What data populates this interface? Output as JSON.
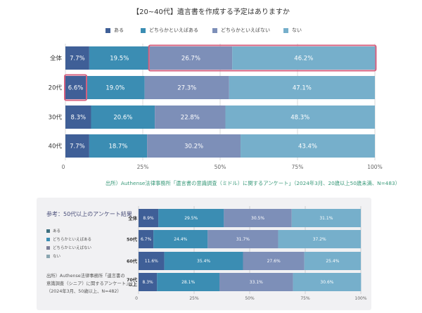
{
  "title": "【20~40代】遺言書を作成する予定はありますか",
  "legend": [
    {
      "label": "ある",
      "color": "#3f5f97"
    },
    {
      "label": "どちらかといえばある",
      "color": "#3b8db3"
    },
    {
      "label": "どちらかといえばない",
      "color": "#7d8fb8"
    },
    {
      "label": "ない",
      "color": "#76afcb"
    }
  ],
  "source_top": "出所）Authense法律事務所「遺言書の意識調査（ミドル）に関するアンケート」（2024年3月、20歳以上50歳未満、N=483）",
  "reference": {
    "title": "参考：50代以上のアンケート結果",
    "legend": [
      {
        "label": "ある",
        "color": "#3f5f97"
      },
      {
        "label": "どちらかといえばある",
        "color": "#3b8db3"
      },
      {
        "label": "どちらかといえばない",
        "color": "#7d8fb8"
      },
      {
        "label": "ない",
        "color": "#76afcb"
      }
    ],
    "source_lines": [
      "出所）Authense法律事務所「遺言書の",
      "意識調査（シニア）に関するアンケート」",
      "（2024年3月、50歳以上、N=482）"
    ]
  },
  "chart_data": [
    {
      "type": "bar",
      "orientation": "horizontal-stacked-100",
      "title": "【20~40代】遺言書を作成する予定はありますか",
      "categories": [
        "全体",
        "20代",
        "30代",
        "40代"
      ],
      "series": [
        {
          "name": "ある",
          "values": [
            7.7,
            6.6,
            8.3,
            7.7
          ]
        },
        {
          "name": "どちらかといえばある",
          "values": [
            19.5,
            19.0,
            20.6,
            18.7
          ]
        },
        {
          "name": "どちらかといえばない",
          "values": [
            26.7,
            27.3,
            22.8,
            30.2
          ]
        },
        {
          "name": "ない",
          "values": [
            46.2,
            47.1,
            48.3,
            43.4
          ]
        }
      ],
      "xlim": [
        0,
        100
      ],
      "x_ticks": [
        "0",
        "25%",
        "50%",
        "75%",
        "100%"
      ],
      "legend_position": "top",
      "grid": true,
      "highlights": [
        {
          "category": "全体",
          "series": [
            "どちらかといえばない",
            "ない"
          ]
        },
        {
          "category": "20代",
          "series": [
            "ある"
          ]
        }
      ]
    },
    {
      "type": "bar",
      "orientation": "horizontal-stacked-100",
      "title": "参考：50代以上のアンケート結果",
      "categories": [
        "全体",
        "50代",
        "60代",
        "70代以上"
      ],
      "series": [
        {
          "name": "ある",
          "values": [
            8.9,
            6.7,
            11.6,
            8.3
          ]
        },
        {
          "name": "どちらかといえばある",
          "values": [
            29.5,
            24.4,
            35.4,
            28.1
          ]
        },
        {
          "name": "どちらかといえばない",
          "values": [
            30.5,
            31.7,
            27.6,
            33.1
          ]
        },
        {
          "name": "ない",
          "values": [
            31.1,
            37.2,
            25.4,
            30.6
          ]
        }
      ],
      "xlim": [
        0,
        100
      ],
      "x_ticks": [
        "0",
        "25%",
        "50%",
        "75%",
        "100%"
      ],
      "legend_position": "left",
      "grid": true
    }
  ]
}
